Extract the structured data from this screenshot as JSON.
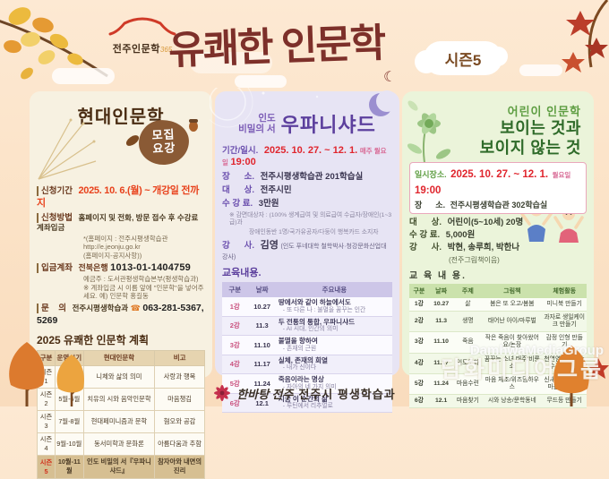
{
  "header": {
    "logo_text": "전주인문학",
    "logo_365": "365",
    "title": "유쾌한 인문학",
    "season_badge": "시즌5"
  },
  "left_panel": {
    "title": "현대인문학",
    "badge_line1": "모집",
    "badge_line2": "요강",
    "apply": {
      "period_label": "신청기간",
      "period": "2025. 10. 6.(월) ~ 개강일 전까지",
      "method_label": "신청방법",
      "method": "홈페이지 및 전화, 방문 접수 후 수강료 계좌입금",
      "method_note1": "*(홈페이지 : 전주시평생학습관 http://e.jeonju.go.kr",
      "method_note2": "(홈페이지-공지사항))",
      "account_label": "입금계좌",
      "bank": "전북은행",
      "account_no": "1013-01-1404759",
      "account_holder": "예금주 : 도서관평생학습본부(평생학습과)",
      "account_note": "※ 계좌입금 시 이름 앞에 \"인문학\"을 넣어주세요. 예) 인문학 홍길동",
      "contact_label": "문    의",
      "contact_org": "전주시평생학습과",
      "phone_icon": "☎",
      "contact_phone": "063-281-5367, 5269"
    },
    "plan_title": "2025 유쾌한 인문학 계획",
    "plan_table": {
      "headers": [
        "구분",
        "운영시기",
        "현대인문학",
        "비고"
      ],
      "rows": [
        [
          "시즌 1",
          "3월-4월",
          "니체와 삶의 의미",
          "사랑과 행복"
        ],
        [
          "시즌 2",
          "5월-6월",
          "치유의 시와 음악인문학",
          "마음챙김"
        ],
        [
          "시즌 3",
          "7월-8월",
          "현대페미니즘과 문학",
          "혐오와 공감"
        ],
        [
          "시즌 4",
          "9월-10월",
          "동서미학과 문화론",
          "아름다움과 추함"
        ],
        [
          "시즌5",
          "10월-11월",
          "인도 비밀의 서『우파니샤드』",
          "참자아와 내면의 진리"
        ]
      ]
    }
  },
  "middle_panel": {
    "title_small": "인도\n비밀의 서",
    "title_big": "우파니샤드",
    "date_label": "기간/일시.",
    "date": "2025. 10. 27. ~ 12. 1.",
    "day": "매주 월요일",
    "time": "19:00",
    "place_label": "장      소.",
    "place": "전주시평생학습관 201학습실",
    "target_label": "대      상.",
    "target": "전주시민",
    "fee_label": "수 강 료.",
    "fee": "3만원",
    "note1": "※ 감면대상자 : (100% 생계급여 및 의료급여 수급자/장애인(1~3급)과",
    "note2": "장애인동반 1명/국가유공자/다둥이 행복카드 소지자",
    "teacher_label": "강      사.",
    "teacher_name": "김영",
    "teacher_rest": "(인도 푸네대학 철학박사·청강문화산업대 강사)",
    "edu_title": "교육내용.",
    "table": {
      "headers": [
        "구분",
        "날짜",
        "주요내용"
      ],
      "rows": [
        [
          "1강",
          "10.27",
          [
            "땅에서와 같이 하늘에서도",
            "- 또 다른 나 : 불멸을 꿈꾸는 인간"
          ]
        ],
        [
          "2강",
          "11.3",
          [
            "두 전통의 통합, 우파니샤드",
            "- AI 시대, 인간의 의미"
          ]
        ],
        [
          "3강",
          "11.10",
          [
            "불멸을 향하여",
            "- 존재의 근원"
          ]
        ],
        [
          "4강",
          "11.17",
          [
            "실체, 존재의 희열",
            "- 내가 신이다"
          ]
        ],
        [
          "5강",
          "11.24",
          [
            "죽음이라는 명상",
            "- 자아의 네 가지 의미"
          ]
        ],
        [
          "6강",
          "12.1",
          [
            "지금 이 순간의 삶",
            "- 루틴에서 리추얼로"
          ]
        ]
      ]
    }
  },
  "right_panel": {
    "title_small": "어린이 인문학",
    "title_big1": "보이는 것과",
    "title_big2": "보이지 않는 것",
    "datebox": {
      "label": "일시장소.",
      "date": "2025. 10. 27. ~ 12. 1.",
      "day": "월요일",
      "time": "19:00",
      "place_label": "장      소.",
      "place": "전주시평생학습관 302학습실"
    },
    "target_label": "대      상.",
    "target": "어린이(5~10세) 20명",
    "fee_label": "수 강 료.",
    "fee": "5,000원",
    "teacher_label": "강      사.",
    "teacher": "박현, 송루희, 박한나",
    "teacher_org": "(전주그림책이음)",
    "edu_title": "교 육 내 용.",
    "table": {
      "headers": [
        "구분",
        "날짜",
        "주제",
        "그림책",
        "체험활동"
      ],
      "rows": [
        [
          "1강",
          "10.27",
          "삶",
          "봄은 또 오고/봄봄",
          "미니북 만들기"
        ],
        [
          "2강",
          "11.3",
          "생명",
          "태어난 아이/마루벌",
          "과자로 생일케이크 만들기"
        ],
        [
          "3강",
          "11.10",
          "죽음",
          "작은 죽음이 찾아왔어요/논장",
          "감정 인형 만들기"
        ],
        [
          "4강",
          "11.17",
          "인도문화",
          "꿈꾸는 소녀 태주/비룡소",
          "천연염색기법 손수건 만들기"
        ],
        [
          "5강",
          "11.24",
          "마음수련",
          "마음 체조/위즈덤하우스",
          "신체활동을 통해 마음수련하기"
        ],
        [
          "6강",
          "12.1",
          "마음찾기",
          "시와 낭송/문학동네",
          "무드등 만들기"
        ]
      ]
    }
  },
  "footer": {
    "slogan": "한바탕 전주",
    "org": "전주시 평생학습과"
  },
  "watermark": {
    "en": "DamhwaMediaGroup",
    "ko": "담화미디어그룹"
  },
  "colors": {
    "accent_red": "#e8421c",
    "title_maroon": "#7d302a",
    "left_brown": "#5a3414",
    "purple": "#5c3f9d",
    "green_dark": "#2f6b2a",
    "panel_left_bg": "#f7f1e1",
    "panel_mid_bg": "#e7e4f4",
    "panel_right_bg": "#ebf4da"
  }
}
